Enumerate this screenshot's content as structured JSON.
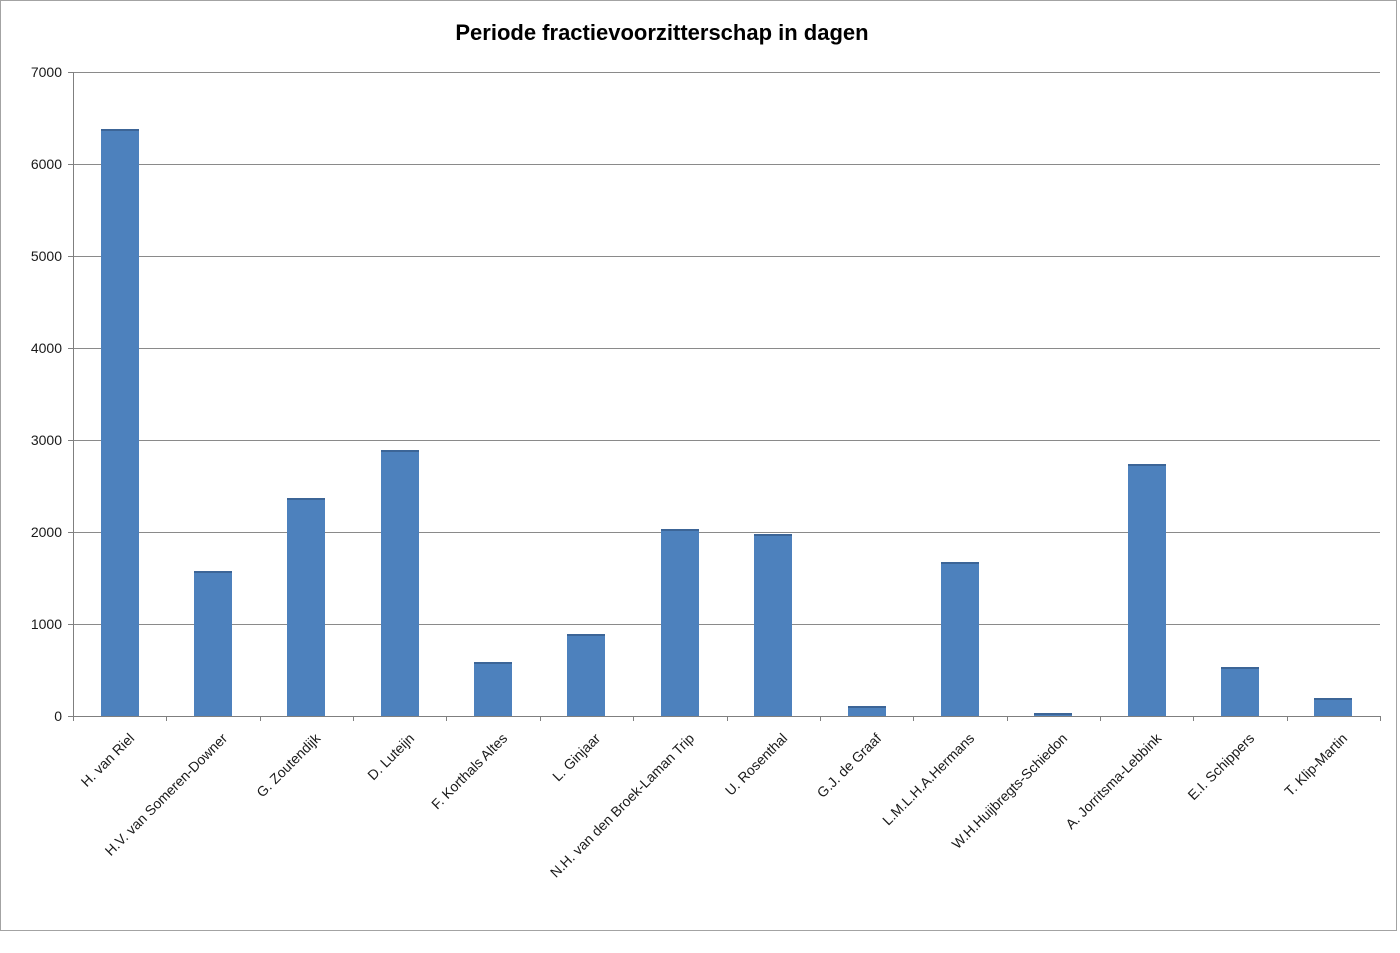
{
  "chart_data": {
    "type": "bar",
    "title": "Periode fractievoorzitterschap in dagen",
    "xlabel": "",
    "ylabel": "",
    "categories": [
      "H. van Riel",
      "H.V. van Someren-Downer",
      "G. Zoutendijk",
      "D. Luteijn",
      "F. Korthals Altes",
      "L. Ginjaar",
      "N.H. van den Broek-Laman Trip",
      "U. Rosenthal",
      "G.J. de Graaf",
      "L.M.L.H.A.Hermans",
      "W.H.Huijbregts-Schiedon",
      "A. Jorritsma-Lebbink",
      "E.I. Schippers",
      "T. Klip-Martin"
    ],
    "values": [
      6375,
      1580,
      2370,
      2890,
      590,
      890,
      2030,
      1975,
      110,
      1670,
      30,
      2740,
      530,
      200
    ],
    "ylim": [
      0,
      7000
    ],
    "y_ticks": [
      0,
      1000,
      2000,
      3000,
      4000,
      5000,
      6000,
      7000
    ],
    "grid": true,
    "legend": "none",
    "bar_color": "#4d81bd",
    "x_label_rotation_deg": -45
  },
  "colors": {
    "bar": "#4d81bd",
    "gridline": "#8a8a8a",
    "axis": "#7f7f7f",
    "text": "#1a1a1a",
    "title_text": "#000000",
    "frame_border": "#a3a3a3",
    "background": "#ffffff"
  }
}
